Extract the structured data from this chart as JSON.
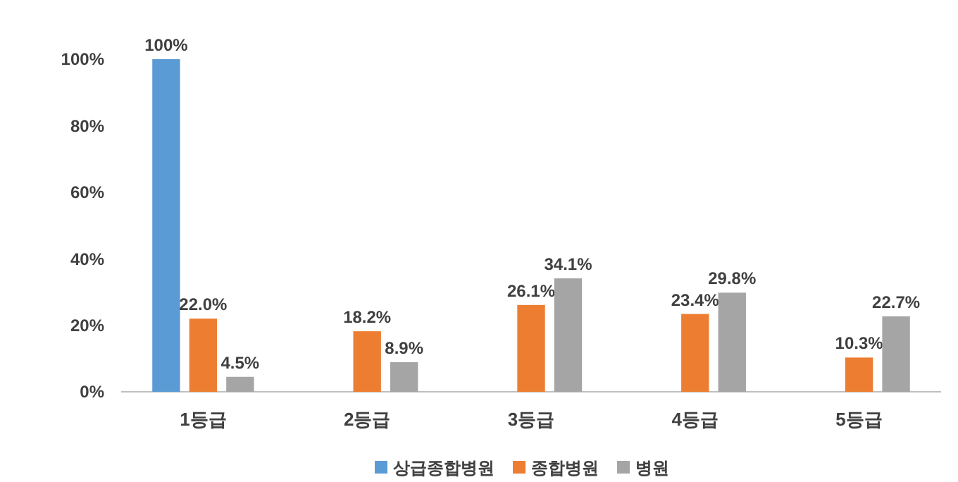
{
  "chart_data": {
    "type": "bar",
    "categories": [
      "1등급",
      "2등급",
      "3등급",
      "4등급",
      "5등급"
    ],
    "series": [
      {
        "name": "상급종합병원",
        "color": "#5b9bd5",
        "values": [
          100,
          null,
          null,
          null,
          null
        ],
        "value_labels": [
          "100%",
          null,
          null,
          null,
          null
        ]
      },
      {
        "name": "종합병원",
        "color": "#ed7d31",
        "values": [
          22.0,
          18.2,
          26.1,
          23.4,
          10.3
        ],
        "value_labels": [
          "22.0%",
          "18.2%",
          "26.1%",
          "23.4%",
          "10.3%"
        ]
      },
      {
        "name": "병원",
        "color": "#a5a5a5",
        "values": [
          4.5,
          8.9,
          34.1,
          29.8,
          22.7
        ],
        "value_labels": [
          "4.5%",
          "8.9%",
          "34.1%",
          "29.8%",
          "22.7%"
        ]
      }
    ],
    "ylim": [
      0,
      100
    ],
    "yticks": [
      {
        "value": 0,
        "label": "0%"
      },
      {
        "value": 20,
        "label": "20%"
      },
      {
        "value": 40,
        "label": "40%"
      },
      {
        "value": 60,
        "label": "60%"
      },
      {
        "value": 80,
        "label": "80%"
      },
      {
        "value": 100,
        "label": "100%"
      }
    ],
    "grid": false,
    "legend": "bottom"
  }
}
